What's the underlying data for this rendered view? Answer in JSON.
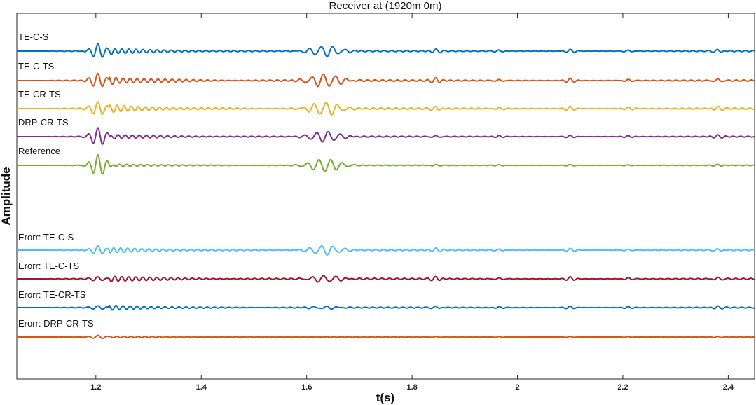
{
  "chart_data": {
    "type": "line",
    "title": "Receiver at (1920m 0m)",
    "xlabel": "t(s)",
    "ylabel": "Amplitude",
    "xlim": [
      1.05,
      2.45
    ],
    "xticks": [
      "1.2",
      "1.4",
      "1.6",
      "1.8",
      "2",
      "2.2",
      "2.4"
    ],
    "grid": false,
    "series": [
      {
        "name": "TE-C-S",
        "color": "#0072BD",
        "event1_amp": 10,
        "event2_amp": 8,
        "noise_amp": 2.4,
        "seed": 1
      },
      {
        "name": "TE-C-TS",
        "color": "#D95319",
        "event1_amp": 10,
        "event2_amp": 10,
        "noise_amp": 3.0,
        "seed": 2
      },
      {
        "name": "TE-CR-TS",
        "color": "#EDB120",
        "event1_amp": 10,
        "event2_amp": 10,
        "noise_amp": 3.0,
        "seed": 3
      },
      {
        "name": "DRP-CR-TS",
        "color": "#7E2F8E",
        "event1_amp": 13,
        "event2_amp": 8,
        "noise_amp": 2.0,
        "seed": 4
      },
      {
        "name": "Reference",
        "color": "#77AC30",
        "event1_amp": 15,
        "event2_amp": 10,
        "noise_amp": 1.2,
        "seed": 5
      },
      {
        "name": "Erorr: TE-C-S",
        "color": "#4DBEEE",
        "event1_amp": 6,
        "event2_amp": 7,
        "noise_amp": 2.2,
        "seed": 6
      },
      {
        "name": "Erorr: TE-C-TS",
        "color": "#A2142F",
        "event1_amp": 3,
        "event2_amp": 5,
        "noise_amp": 2.6,
        "seed": 7
      },
      {
        "name": "Erorr: TE-CR-TS",
        "color": "#0072BD",
        "event1_amp": 3,
        "event2_amp": 2,
        "noise_amp": 2.0,
        "seed": 8
      },
      {
        "name": "Erorr: DRP-CR-TS",
        "color": "#D95319",
        "event1_amp": 2.5,
        "event2_amp": 0,
        "noise_amp": 0.6,
        "seed": 9
      }
    ],
    "events_s": [
      1.205,
      1.635
    ]
  }
}
